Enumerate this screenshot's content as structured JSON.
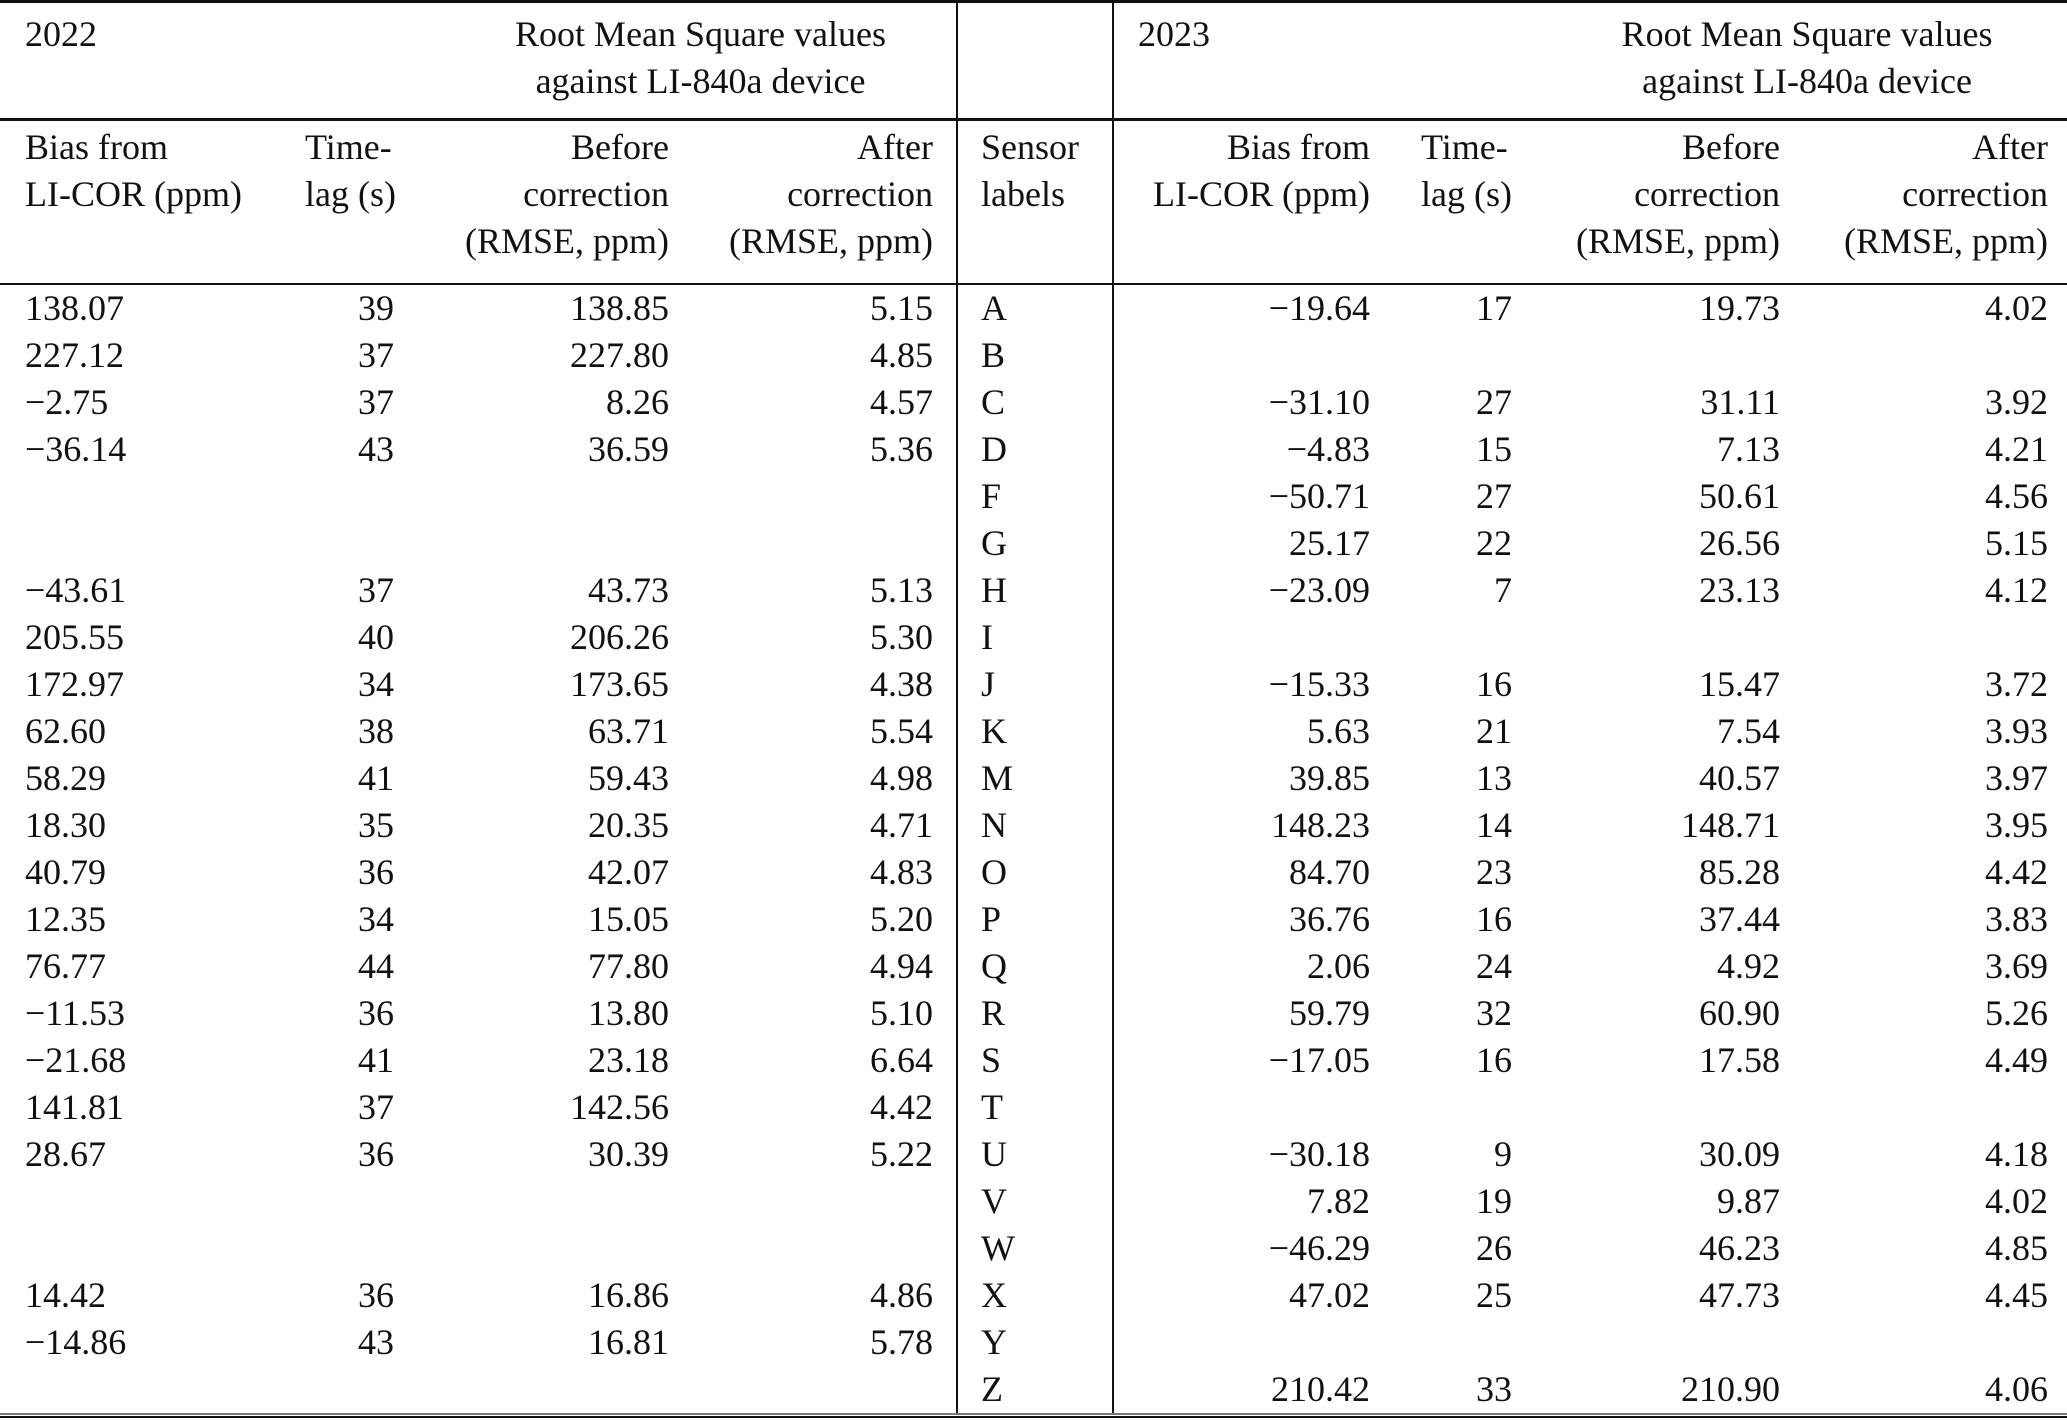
{
  "table": {
    "left_year": "2022",
    "right_year": "2023",
    "group_header": {
      "line1": "Root Mean Square values",
      "line2": "against LI-840a device"
    },
    "columns": {
      "bias": [
        "Bias from",
        "LI-COR (ppm)"
      ],
      "lag": [
        "Time-",
        "lag (s)"
      ],
      "before": [
        "Before",
        "correction",
        "(RMSE, ppm)"
      ],
      "after": [
        "After",
        "correction",
        "(RMSE, ppm)"
      ],
      "sensor": [
        "Sensor",
        "labels"
      ]
    },
    "rows": [
      {
        "label": "A",
        "y2022": [
          "138.07",
          "39",
          "138.85",
          "5.15"
        ],
        "y2023": [
          "−19.64",
          "17",
          "19.73",
          "4.02"
        ]
      },
      {
        "label": "B",
        "y2022": [
          "227.12",
          "37",
          "227.80",
          "4.85"
        ],
        "y2023": [
          "",
          "",
          "",
          ""
        ]
      },
      {
        "label": "C",
        "y2022": [
          "−2.75",
          "37",
          "8.26",
          "4.57"
        ],
        "y2023": [
          "−31.10",
          "27",
          "31.11",
          "3.92"
        ]
      },
      {
        "label": "D",
        "y2022": [
          "−36.14",
          "43",
          "36.59",
          "5.36"
        ],
        "y2023": [
          "−4.83",
          "15",
          "7.13",
          "4.21"
        ]
      },
      {
        "label": "F",
        "y2022": [
          "",
          "",
          "",
          ""
        ],
        "y2023": [
          "−50.71",
          "27",
          "50.61",
          "4.56"
        ]
      },
      {
        "label": "G",
        "y2022": [
          "",
          "",
          "",
          ""
        ],
        "y2023": [
          "25.17",
          "22",
          "26.56",
          "5.15"
        ]
      },
      {
        "label": "H",
        "y2022": [
          "−43.61",
          "37",
          "43.73",
          "5.13"
        ],
        "y2023": [
          "−23.09",
          "7",
          "23.13",
          "4.12"
        ]
      },
      {
        "label": "I",
        "y2022": [
          "205.55",
          "40",
          "206.26",
          "5.30"
        ],
        "y2023": [
          "",
          "",
          "",
          ""
        ]
      },
      {
        "label": "J",
        "y2022": [
          "172.97",
          "34",
          "173.65",
          "4.38"
        ],
        "y2023": [
          "−15.33",
          "16",
          "15.47",
          "3.72"
        ]
      },
      {
        "label": "K",
        "y2022": [
          "62.60",
          "38",
          "63.71",
          "5.54"
        ],
        "y2023": [
          "5.63",
          "21",
          "7.54",
          "3.93"
        ]
      },
      {
        "label": "M",
        "y2022": [
          "58.29",
          "41",
          "59.43",
          "4.98"
        ],
        "y2023": [
          "39.85",
          "13",
          "40.57",
          "3.97"
        ]
      },
      {
        "label": "N",
        "y2022": [
          "18.30",
          "35",
          "20.35",
          "4.71"
        ],
        "y2023": [
          "148.23",
          "14",
          "148.71",
          "3.95"
        ]
      },
      {
        "label": "O",
        "y2022": [
          "40.79",
          "36",
          "42.07",
          "4.83"
        ],
        "y2023": [
          "84.70",
          "23",
          "85.28",
          "4.42"
        ]
      },
      {
        "label": "P",
        "y2022": [
          "12.35",
          "34",
          "15.05",
          "5.20"
        ],
        "y2023": [
          "36.76",
          "16",
          "37.44",
          "3.83"
        ]
      },
      {
        "label": "Q",
        "y2022": [
          "76.77",
          "44",
          "77.80",
          "4.94"
        ],
        "y2023": [
          "2.06",
          "24",
          "4.92",
          "3.69"
        ]
      },
      {
        "label": "R",
        "y2022": [
          "−11.53",
          "36",
          "13.80",
          "5.10"
        ],
        "y2023": [
          "59.79",
          "32",
          "60.90",
          "5.26"
        ]
      },
      {
        "label": "S",
        "y2022": [
          "−21.68",
          "41",
          "23.18",
          "6.64"
        ],
        "y2023": [
          "−17.05",
          "16",
          "17.58",
          "4.49"
        ]
      },
      {
        "label": "T",
        "y2022": [
          "141.81",
          "37",
          "142.56",
          "4.42"
        ],
        "y2023": [
          "",
          "",
          "",
          ""
        ]
      },
      {
        "label": "U",
        "y2022": [
          "28.67",
          "36",
          "30.39",
          "5.22"
        ],
        "y2023": [
          "−30.18",
          "9",
          "30.09",
          "4.18"
        ]
      },
      {
        "label": "V",
        "y2022": [
          "",
          "",
          "",
          ""
        ],
        "y2023": [
          "7.82",
          "19",
          "9.87",
          "4.02"
        ]
      },
      {
        "label": "W",
        "y2022": [
          "",
          "",
          "",
          ""
        ],
        "y2023": [
          "−46.29",
          "26",
          "46.23",
          "4.85"
        ]
      },
      {
        "label": "X",
        "y2022": [
          "14.42",
          "36",
          "16.86",
          "4.86"
        ],
        "y2023": [
          "47.02",
          "25",
          "47.73",
          "4.45"
        ]
      },
      {
        "label": "Y",
        "y2022": [
          "−14.86",
          "43",
          "16.81",
          "5.78"
        ],
        "y2023": [
          "",
          "",
          "",
          ""
        ]
      },
      {
        "label": "Z",
        "y2022": [
          "",
          "",
          "",
          ""
        ],
        "y2023": [
          "210.42",
          "33",
          "210.90",
          "4.06"
        ]
      }
    ]
  }
}
